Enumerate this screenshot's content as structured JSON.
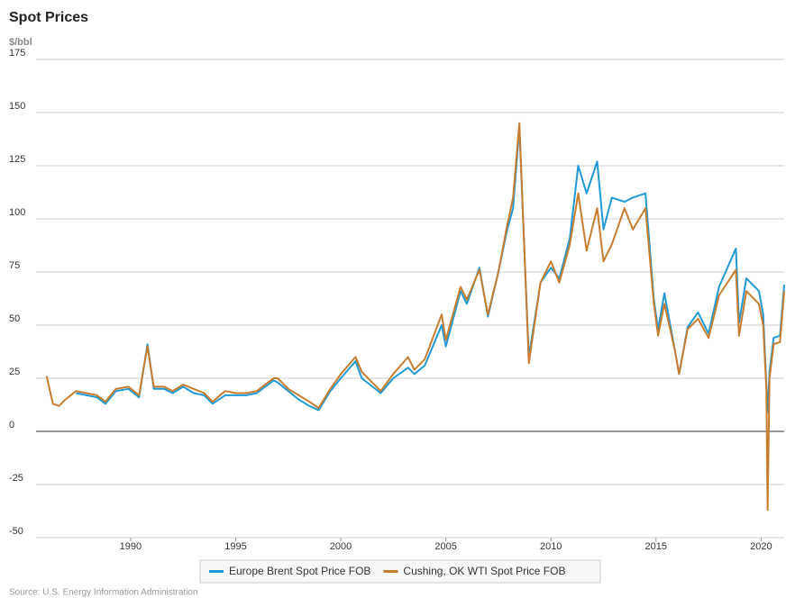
{
  "chart_data": {
    "type": "line",
    "title": "Spot Prices",
    "y_label": "$/bbl",
    "source": "Source: U.S. Energy Information Administration",
    "x": [
      1986.0,
      1986.3,
      1986.6,
      1986.9,
      1987.4,
      1987.9,
      1988.4,
      1988.8,
      1989.3,
      1989.9,
      1990.4,
      1990.8,
      1991.1,
      1991.6,
      1992.0,
      1992.5,
      1993.0,
      1993.5,
      1993.9,
      1994.5,
      1995.0,
      1995.5,
      1996.0,
      1996.8,
      1997.0,
      1997.5,
      1998.0,
      1998.5,
      1998.95,
      1999.5,
      2000.0,
      2000.7,
      2001.0,
      2001.9,
      2002.5,
      2003.2,
      2003.5,
      2004.0,
      2004.8,
      2005.0,
      2005.7,
      2006.0,
      2006.6,
      2007.0,
      2007.5,
      2007.9,
      2008.2,
      2008.5,
      2008.8,
      2008.95,
      2009.5,
      2010.0,
      2010.4,
      2010.9,
      2011.3,
      2011.7,
      2012.2,
      2012.5,
      2012.9,
      2013.5,
      2013.9,
      2014.5,
      2014.9,
      2015.1,
      2015.4,
      2015.9,
      2016.1,
      2016.5,
      2017.0,
      2017.5,
      2018.0,
      2018.8,
      2018.95,
      2019.3,
      2019.9,
      2020.1,
      2020.25,
      2020.31,
      2020.4,
      2020.6,
      2020.9,
      2021.1
    ],
    "series": [
      {
        "name": "Europe Brent Spot Price FOB",
        "color": "#1f9ad6",
        "values": [
          null,
          null,
          null,
          null,
          18,
          17,
          16,
          13,
          19,
          20,
          16,
          41,
          20,
          20,
          18,
          21,
          18,
          17,
          13,
          17,
          17,
          17,
          18,
          24,
          23,
          19,
          15,
          12,
          10,
          19,
          25,
          33,
          25,
          18,
          25,
          30,
          27,
          31,
          50,
          40,
          66,
          60,
          77,
          54,
          75,
          94,
          105,
          143,
          70,
          35,
          70,
          77,
          72,
          91,
          125,
          112,
          127,
          95,
          110,
          108,
          110,
          112,
          62,
          48,
          65,
          38,
          27,
          49,
          56,
          46,
          68,
          86,
          51,
          72,
          66,
          55,
          22,
          9,
          28,
          44,
          45,
          69
        ]
      },
      {
        "name": "Cushing, OK WTI Spot Price FOB",
        "color": "#c87d2e",
        "values": [
          26,
          13,
          12,
          15,
          19,
          18,
          17,
          14,
          20,
          21,
          17,
          40,
          21,
          21,
          19,
          22,
          20,
          18,
          14,
          19,
          18,
          18,
          19,
          25,
          25,
          20,
          17,
          14,
          11,
          20,
          27,
          35,
          28,
          19,
          27,
          35,
          29,
          34,
          55,
          43,
          68,
          62,
          76,
          55,
          75,
          96,
          110,
          145,
          70,
          32,
          70,
          80,
          70,
          88,
          112,
          85,
          105,
          80,
          88,
          105,
          95,
          105,
          60,
          45,
          60,
          38,
          27,
          48,
          53,
          44,
          64,
          76,
          45,
          66,
          60,
          50,
          20,
          -37,
          25,
          41,
          42,
          66
        ]
      }
    ],
    "xlim": [
      1985.5,
      2021.1
    ],
    "xticks": [
      1990,
      1995,
      2000,
      2005,
      2010,
      2015,
      2020
    ],
    "ylim": [
      -50,
      175
    ],
    "yticks": [
      -50,
      -25,
      0,
      25,
      50,
      75,
      100,
      125,
      150,
      175
    ],
    "grid": true,
    "legend": "bottom"
  }
}
